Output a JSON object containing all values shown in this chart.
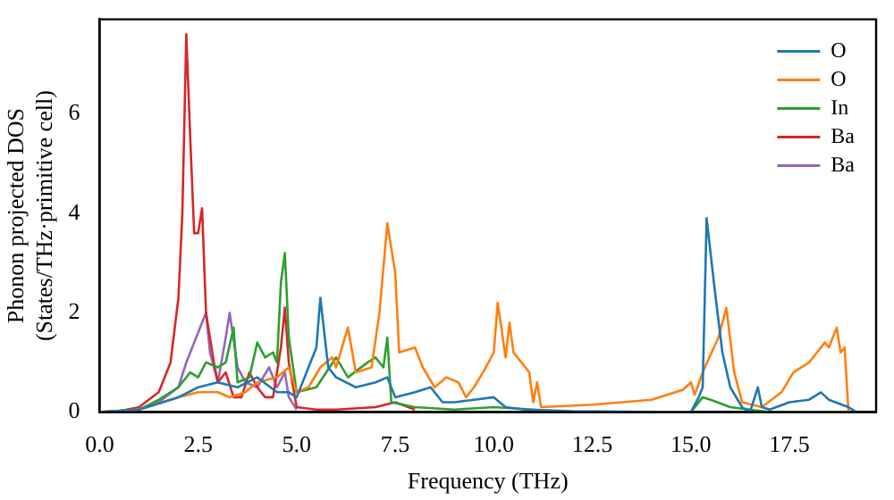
{
  "chart_data": {
    "type": "line",
    "xlabel": "Frequency (THz)",
    "ylabel": "Phonon projected DOS\n(States/THz·primitive cell)",
    "xlim": [
      0,
      19.7
    ],
    "xticks": [
      {
        "value": 0,
        "label": "0.0"
      },
      {
        "value": 2.5,
        "label": "2.5"
      },
      {
        "value": 5,
        "label": "5.0"
      },
      {
        "value": 7.5,
        "label": "7.5"
      },
      {
        "value": 10,
        "label": "10.0"
      },
      {
        "value": 12.5,
        "label": "12.5"
      },
      {
        "value": 15,
        "label": "15.0"
      },
      {
        "value": 17.5,
        "label": "17.5"
      }
    ],
    "ylim": [
      0,
      7.9
    ],
    "yticks": [
      0,
      2,
      4,
      6
    ],
    "grid": false,
    "legend": "top right",
    "marker": "none",
    "line_style": "solid",
    "series": [
      {
        "name": "O",
        "color": "#1f77b4",
        "x": [
          0,
          1,
          2,
          2.5,
          3,
          3.5,
          4,
          4.5,
          4.8,
          5,
          5.3,
          5.5,
          5.6,
          5.8,
          6,
          6.5,
          7,
          7.3,
          7.5,
          8,
          8.4,
          8.7,
          9,
          9.5,
          10,
          10.3,
          10.8,
          12,
          15,
          15.2,
          15.3,
          15.4,
          15.6,
          15.8,
          16,
          16.3,
          16.5,
          16.7,
          16.8,
          17,
          17.5,
          18,
          18.3,
          18.5,
          19,
          19.2
        ],
        "values": [
          0,
          0.05,
          0.3,
          0.5,
          0.6,
          0.5,
          0.7,
          0.4,
          0.4,
          0.3,
          0.9,
          1.3,
          2.3,
          0.9,
          0.7,
          0.5,
          0.6,
          0.7,
          0.3,
          0.4,
          0.5,
          0.2,
          0.2,
          0.25,
          0.3,
          0.1,
          0.05,
          0.02,
          0,
          0.3,
          0.5,
          3.9,
          2.5,
          1.2,
          0.5,
          0.1,
          0,
          0.5,
          0.1,
          0.05,
          0.2,
          0.25,
          0.4,
          0.25,
          0.1,
          0
        ]
      },
      {
        "name": "O",
        "color": "#ff7f0e",
        "x": [
          0,
          1,
          2,
          2.5,
          3,
          3.3,
          3.7,
          4,
          4.5,
          4.8,
          5,
          5.3,
          5.6,
          5.9,
          6,
          6.3,
          6.5,
          6.9,
          7.1,
          7.3,
          7.5,
          7.6,
          8,
          8.2,
          8.5,
          8.8,
          9.1,
          9.3,
          9.5,
          9.8,
          10,
          10.1,
          10.3,
          10.4,
          10.5,
          10.7,
          10.9,
          11,
          11.1,
          11.2,
          12.5,
          14,
          14.8,
          15,
          15.1,
          15.3,
          15.7,
          15.9,
          16.1,
          16.3,
          16.8,
          17.3,
          17.6,
          18,
          18.2,
          18.4,
          18.5,
          18.7,
          18.8,
          18.9,
          19
        ],
        "values": [
          0,
          0.05,
          0.3,
          0.4,
          0.4,
          0.3,
          0.4,
          0.6,
          0.7,
          0.9,
          0.4,
          0.5,
          0.9,
          1.1,
          0.9,
          1.7,
          0.8,
          0.9,
          2,
          3.8,
          2.8,
          1.2,
          1.3,
          0.9,
          0.5,
          0.7,
          0.6,
          0.3,
          0.5,
          0.9,
          1.2,
          2.2,
          1.1,
          1.8,
          1.2,
          1,
          0.8,
          0.2,
          0.6,
          0.1,
          0.15,
          0.25,
          0.45,
          0.6,
          0.35,
          0.8,
          1.5,
          2.1,
          0.8,
          0.2,
          0.1,
          0.4,
          0.8,
          1,
          1.2,
          1.4,
          1.3,
          1.7,
          1.2,
          1.3,
          0
        ]
      },
      {
        "name": "In",
        "color": "#2ca02c",
        "x": [
          0,
          1,
          1.5,
          2,
          2.3,
          2.5,
          2.7,
          3,
          3.2,
          3.4,
          3.5,
          3.8,
          4,
          4.2,
          4.4,
          4.5,
          4.6,
          4.7,
          4.8,
          5,
          5.5,
          6,
          6.3,
          6.8,
          7,
          7.2,
          7.3,
          7.4,
          8,
          9,
          10,
          11,
          12,
          15,
          15.3,
          15.5,
          16,
          17,
          19
        ],
        "values": [
          0,
          0.05,
          0.25,
          0.5,
          0.8,
          0.7,
          1,
          0.9,
          1,
          1.7,
          0.6,
          0.7,
          1.4,
          1.1,
          1.2,
          1,
          2.6,
          3.2,
          1.5,
          0.4,
          0.5,
          1.1,
          0.7,
          1,
          1.1,
          0.9,
          1.5,
          0.2,
          0.1,
          0.05,
          0.1,
          0.05,
          0,
          0,
          0.3,
          0.25,
          0.1,
          0,
          0
        ]
      },
      {
        "name": "Ba",
        "color": "#d62728",
        "x": [
          0,
          0.5,
          1,
          1.5,
          1.8,
          2,
          2.1,
          2.2,
          2.3,
          2.4,
          2.5,
          2.6,
          2.7,
          2.9,
          3,
          3.2,
          3.4,
          3.6,
          3.8,
          4,
          4.2,
          4.4,
          4.6,
          4.7,
          4.8,
          5,
          5.5,
          6,
          7,
          7.5,
          8
        ],
        "values": [
          0,
          0.02,
          0.1,
          0.4,
          1,
          2.3,
          4,
          7.6,
          5.5,
          3.6,
          3.6,
          4.1,
          2,
          1,
          0.6,
          0.8,
          0.3,
          0.3,
          0.8,
          0.5,
          0.3,
          0.3,
          1.3,
          2.1,
          1,
          0.1,
          0.05,
          0.05,
          0.1,
          0.2,
          0.05
        ]
      },
      {
        "name": "Ba",
        "color": "#9467bd",
        "x": [
          0,
          1,
          1.5,
          2,
          2.2,
          2.5,
          2.7,
          2.8,
          3,
          3.2,
          3.3,
          3.5,
          3.7,
          4,
          4.3,
          4.5,
          4.7,
          4.8,
          5
        ],
        "values": [
          0,
          0.05,
          0.2,
          0.5,
          1,
          1.6,
          2,
          1.2,
          0.6,
          1.5,
          2,
          0.9,
          0.6,
          0.5,
          0.9,
          0.5,
          0.8,
          0.3,
          0.05
        ]
      }
    ]
  }
}
